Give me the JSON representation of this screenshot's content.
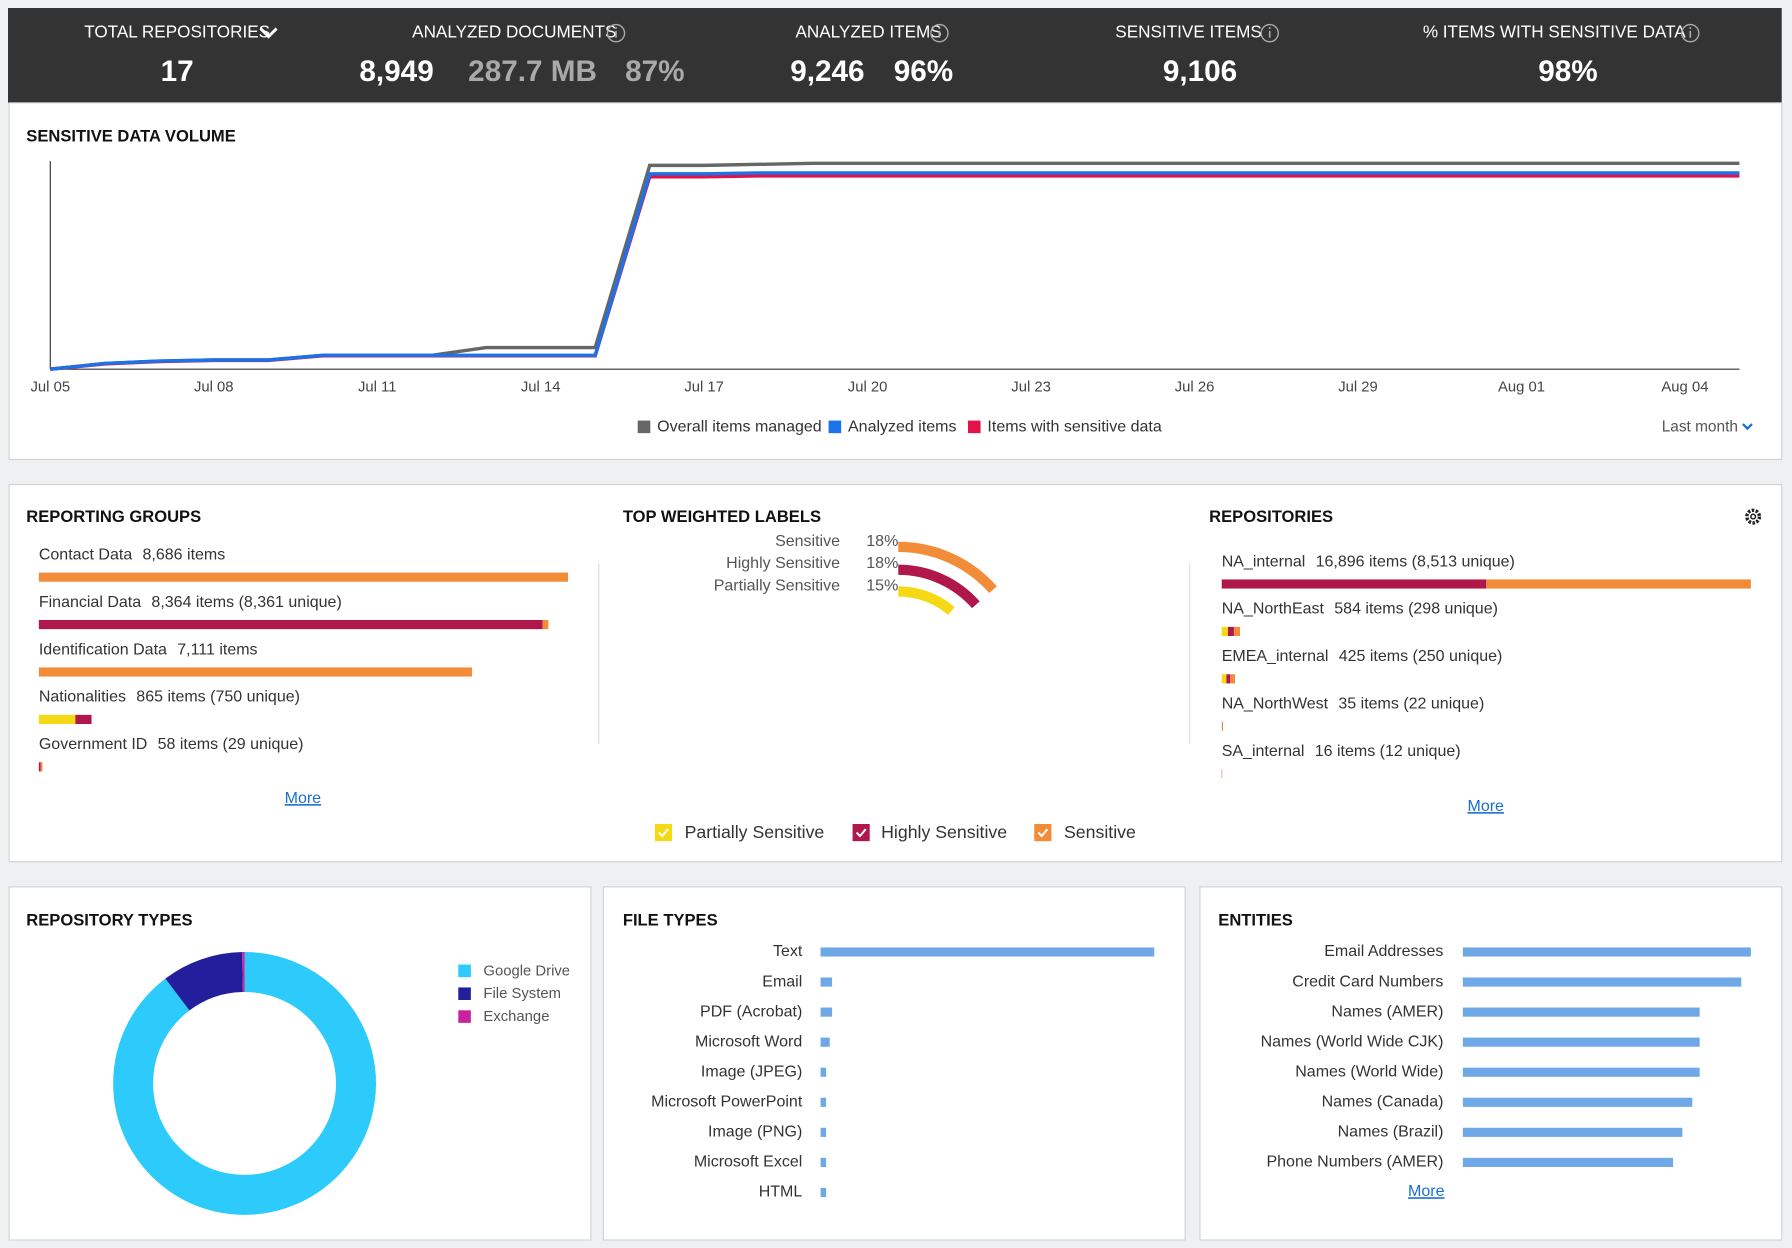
{
  "header": {
    "kpis": [
      {
        "label": "TOTAL REPOSITORIES",
        "values": [
          "17"
        ]
      },
      {
        "label": "ANALYZED DOCUMENTS",
        "values": [
          "8,949",
          "287.7 MB",
          "87%"
        ]
      },
      {
        "label": "ANALYZED ITEMS",
        "values": [
          "9,246",
          "96%"
        ]
      },
      {
        "label": "SENSITIVE ITEMS",
        "values": [
          "9,106"
        ]
      },
      {
        "label": "% ITEMS WITH SENSITIVE DATA",
        "values": [
          "98%"
        ]
      }
    ]
  },
  "volume": {
    "type": "line",
    "title": "SENSITIVE DATA VOLUME",
    "categories": [
      "Jul 05",
      null,
      null,
      "Jul 08",
      null,
      null,
      "Jul 11",
      null,
      null,
      "Jul 14",
      null,
      null,
      "Jul 17",
      null,
      null,
      "Jul 20",
      null,
      null,
      "Jul 23",
      null,
      null,
      "Jul 26",
      null,
      null,
      "Jul 29",
      null,
      null,
      "Aug 01",
      null,
      null,
      "Aug 04",
      null
    ],
    "ylim": [
      0,
      9800
    ],
    "series": [
      {
        "name": "Overall items managed",
        "color": "#666666",
        "values": [
          0,
          270,
          380,
          430,
          430,
          650,
          650,
          650,
          1020,
          1020,
          1020,
          9600,
          9600,
          9650,
          9700,
          9700,
          9700,
          9700,
          9700,
          9700,
          9700,
          9700,
          9700,
          9700,
          9700,
          9700,
          9700,
          9700,
          9700,
          9700,
          9700,
          9700
        ]
      },
      {
        "name": "Analyzed items",
        "color": "#1a73e8",
        "values": [
          0,
          270,
          380,
          430,
          430,
          650,
          650,
          650,
          650,
          650,
          650,
          9200,
          9200,
          9246,
          9246,
          9246,
          9246,
          9246,
          9246,
          9246,
          9246,
          9246,
          9246,
          9246,
          9246,
          9246,
          9246,
          9246,
          9246,
          9246,
          9246,
          9246
        ]
      },
      {
        "name": "Items with sensitive data",
        "color": "#e0134a",
        "values": [
          0,
          250,
          360,
          410,
          410,
          630,
          630,
          630,
          630,
          630,
          630,
          9060,
          9060,
          9106,
          9106,
          9106,
          9106,
          9106,
          9106,
          9106,
          9106,
          9106,
          9106,
          9106,
          9106,
          9106,
          9106,
          9106,
          9106,
          9106,
          9106,
          9106
        ]
      }
    ],
    "period": "Last month"
  },
  "sensitivity": {
    "series": [
      {
        "name": "Partially Sensitive",
        "color": "#f5d915"
      },
      {
        "name": "Highly Sensitive",
        "color": "#b0174a"
      },
      {
        "name": "Sensitive",
        "color": "#f28c38"
      }
    ]
  },
  "reporting_groups": {
    "type": "stacked_bar",
    "title": "REPORTING GROUPS",
    "rows": [
      {
        "name": "Contact Data",
        "count": "8,686 items"
      },
      {
        "name": "Financial Data",
        "count": "8,364 items (8,361 unique)"
      },
      {
        "name": "Identification Data",
        "count": "7,111 items"
      },
      {
        "name": "Nationalities",
        "count": "865 items (750 unique)"
      },
      {
        "name": "Government ID",
        "count": "58 items (29 unique)"
      }
    ],
    "series": [
      {
        "values": [
          0,
          0,
          0,
          600,
          0
        ]
      },
      {
        "values": [
          0,
          8270,
          0,
          265,
          28
        ]
      },
      {
        "values": [
          8686,
          94,
          7111,
          0,
          30
        ]
      }
    ],
    "more": "More"
  },
  "top_labels": {
    "type": "radial_bar",
    "title": "TOP WEIGHTED LABELS",
    "categories": [
      "Sensitive",
      "Highly Sensitive",
      "Partially Sensitive"
    ],
    "values": [
      18,
      18,
      15
    ],
    "value_labels": [
      "18%",
      "18%",
      "15%"
    ],
    "colors": [
      "#f28c38",
      "#b0174a",
      "#f5d915"
    ]
  },
  "repositories": {
    "type": "stacked_bar",
    "title": "REPOSITORIES",
    "rows": [
      {
        "name": "NA_internal",
        "count": "16,896 items (8,513 unique)"
      },
      {
        "name": "NA_NorthEast",
        "count": "584 items (298 unique)"
      },
      {
        "name": "EMEA_internal",
        "count": "425 items (250 unique)"
      },
      {
        "name": "NA_NorthWest",
        "count": "35 items (22 unique)"
      },
      {
        "name": "SA_internal",
        "count": "16 items (12 unique)"
      }
    ],
    "series": [
      {
        "values": [
          0,
          200,
          150,
          12,
          0
        ]
      },
      {
        "values": [
          8450,
          190,
          125,
          12,
          8
        ]
      },
      {
        "values": [
          8446,
          194,
          150,
          11,
          8
        ]
      }
    ],
    "more": "More"
  },
  "repository_types": {
    "type": "donut",
    "title": "REPOSITORY TYPES",
    "categories": [
      "Google Drive",
      "File System",
      "Exchange"
    ],
    "values": [
      89.7,
      10,
      0.3
    ],
    "colors": [
      "#2dcbfb",
      "#231f9c",
      "#c8239e"
    ]
  },
  "file_types": {
    "type": "hbar",
    "title": "FILE TYPES",
    "categories": [
      "Text",
      "Email",
      "PDF (Acrobat)",
      "Microsoft Word",
      "Image (JPEG)",
      "Microsoft PowerPoint",
      "Image (PNG)",
      "Microsoft Excel",
      "HTML"
    ],
    "values": [
      8400,
      290,
      290,
      230,
      140,
      140,
      140,
      140,
      140
    ],
    "color": "#6fa8e6"
  },
  "entities": {
    "type": "hbar",
    "title": "ENTITIES",
    "categories": [
      "Email Addresses",
      "Credit Card Numbers",
      "Names (AMER)",
      "Names (World Wide CJK)",
      "Names (World Wide)",
      "Names (Canada)",
      "Names (Brazil)",
      "Phone Numbers (AMER)"
    ],
    "values": [
      9000,
      8700,
      7400,
      7400,
      7400,
      7170,
      6860,
      6570
    ],
    "color": "#6fa8e6",
    "more": "More"
  }
}
